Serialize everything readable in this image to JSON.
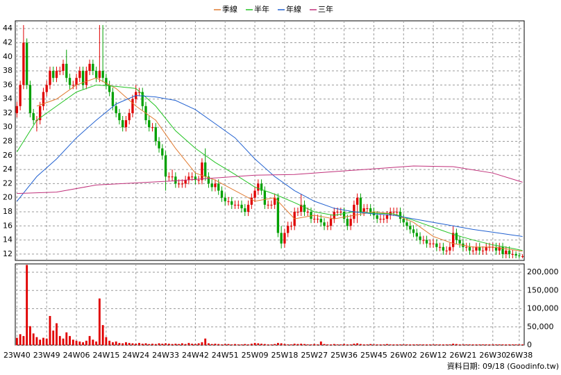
{
  "chart_data": [
    {
      "type": "candlestick",
      "categories": [
        "23W40",
        null,
        null,
        null,
        null,
        null,
        null,
        null,
        null,
        "23W49",
        null,
        null,
        null,
        null,
        null,
        null,
        null,
        null,
        "24W06",
        null,
        null,
        null,
        null,
        null,
        null,
        null,
        null,
        "24W15",
        null,
        null,
        null,
        null,
        null,
        null,
        null,
        null,
        "24W24",
        null,
        null,
        null,
        null,
        null,
        null,
        null,
        null,
        "24W33",
        null,
        null,
        null,
        null,
        null,
        null,
        null,
        null,
        "24W42",
        null,
        null,
        null,
        null,
        null,
        null,
        null,
        null,
        "24W51",
        null,
        null,
        null,
        null,
        null,
        null,
        null,
        null,
        "25W09",
        null,
        null,
        null,
        null,
        null,
        null,
        null,
        null,
        "25W18",
        null,
        null,
        null,
        null,
        null,
        null,
        null,
        null,
        "25W27",
        null,
        null,
        null,
        null,
        null,
        null,
        null,
        null,
        "25W36",
        null,
        null,
        null,
        null,
        null,
        null,
        null,
        null,
        "25W45",
        null,
        null,
        null,
        null,
        null,
        null,
        null,
        null,
        "26W02",
        null,
        null,
        null,
        null,
        null,
        null,
        null,
        null,
        "26W12",
        null,
        null,
        null,
        null,
        null,
        null,
        null,
        null,
        "26W21",
        null,
        null,
        null,
        null,
        null,
        null,
        null,
        null,
        "26W30",
        null,
        null,
        null,
        null,
        null,
        null,
        null,
        "26W38",
        null
      ],
      "open": [
        32,
        33,
        36,
        42,
        36,
        32,
        31,
        31,
        33,
        35,
        36,
        38,
        37,
        38,
        38,
        39,
        37,
        36,
        36,
        37,
        38,
        36,
        38,
        39,
        38,
        37,
        38,
        37,
        36,
        35,
        33,
        32,
        31,
        30,
        31,
        32,
        34,
        35,
        35,
        33,
        31,
        30,
        30,
        28,
        27,
        26,
        23,
        23,
        23,
        22,
        22,
        22,
        22.5,
        23,
        23,
        22.5,
        22.5,
        25,
        23,
        22,
        21.5,
        22,
        21,
        20,
        19.5,
        19.5,
        19,
        19,
        19,
        18.5,
        18,
        19,
        20,
        21,
        22,
        21,
        19,
        19,
        19,
        20,
        15,
        13.5,
        15,
        16,
        16,
        18,
        18,
        19,
        18,
        18,
        17,
        17,
        17,
        16.5,
        16,
        16,
        17,
        18,
        18,
        18,
        17,
        16,
        17,
        19,
        20,
        18,
        18.5,
        18.5,
        18,
        17.5,
        17,
        17,
        17,
        17.5,
        18,
        18,
        18,
        17,
        16.5,
        16,
        15.5,
        15,
        14.5,
        14,
        14,
        13.5,
        13.5,
        13.5,
        13,
        13,
        12.5,
        12.5,
        13,
        15,
        14,
        13.5,
        13,
        13,
        12.5,
        12.5,
        13,
        12.5,
        12.5,
        13,
        13,
        13,
        12.5,
        13,
        12,
        12.5,
        12,
        12,
        11.8,
        11.7
      ],
      "high": [
        33.6,
        36.6,
        44.5,
        42.6,
        36.6,
        32.6,
        31.6,
        33.6,
        35.6,
        36.6,
        38.6,
        38.6,
        38.6,
        38.6,
        39.6,
        41,
        37.6,
        36.6,
        37.6,
        38.6,
        38.6,
        38.6,
        39.6,
        39.6,
        38.6,
        44.5,
        44.5,
        37.6,
        36.6,
        35.6,
        33.6,
        32.6,
        31.6,
        31.6,
        32.6,
        34.6,
        36,
        35.6,
        35.6,
        33.6,
        31.6,
        30.6,
        30.6,
        28.6,
        27.6,
        26.6,
        23.6,
        24,
        23.6,
        22.6,
        22.6,
        23.1,
        23.6,
        23.6,
        23.6,
        23.1,
        25.6,
        27,
        23.6,
        22.6,
        22.6,
        22.6,
        21.6,
        20.6,
        20.1,
        20.1,
        19.6,
        19.6,
        19.6,
        19.1,
        19.6,
        20.6,
        21.6,
        22.6,
        22.6,
        21.6,
        19.6,
        19.6,
        20.6,
        20.6,
        16,
        15.6,
        16.6,
        16.6,
        18.6,
        18.6,
        20.5,
        19.6,
        18.6,
        18.6,
        17.6,
        17.6,
        17.6,
        17.1,
        16.6,
        17.6,
        18.6,
        18.6,
        18.6,
        18.6,
        17.6,
        17.6,
        19.6,
        20.6,
        20.6,
        19.1,
        19.1,
        19.1,
        18.6,
        18.1,
        17.6,
        17.6,
        18.1,
        18.6,
        18.6,
        18.6,
        18.6,
        17.6,
        17.1,
        16.6,
        16.1,
        15.6,
        15.1,
        14.6,
        14.6,
        14.1,
        14.1,
        14.1,
        13.6,
        13.6,
        13.1,
        13.6,
        16,
        15.6,
        14.6,
        14.1,
        13.6,
        13.6,
        13.1,
        13.6,
        13.6,
        13.1,
        13.6,
        13.6,
        13.6,
        13.6,
        13.6,
        13.6,
        13.1,
        13.1,
        12.6,
        12.4,
        12.2,
        12
      ],
      "low": [
        31.4,
        32.4,
        35.4,
        35.4,
        31.4,
        30.4,
        29.4,
        30.4,
        32.4,
        34.4,
        35.4,
        36.4,
        36.4,
        37.4,
        37.4,
        36.4,
        35.4,
        35.4,
        35.4,
        36.4,
        35.4,
        35.4,
        37.4,
        37.4,
        36.4,
        36.4,
        36.4,
        35.4,
        34.4,
        32.4,
        31.4,
        30.4,
        29.4,
        29.4,
        30.4,
        31.4,
        33.4,
        34.4,
        32.4,
        30.4,
        29.4,
        29.4,
        27.4,
        26.4,
        25.4,
        21,
        22.4,
        22.4,
        21.4,
        21.4,
        21.4,
        21.4,
        21.9,
        22.4,
        21.9,
        21.9,
        21.9,
        22.4,
        21.4,
        20.9,
        20.9,
        20.4,
        19.4,
        18.9,
        18.9,
        18.4,
        18.4,
        18.4,
        17.9,
        17.4,
        17.4,
        18.4,
        19.4,
        20.4,
        20.4,
        18.4,
        18.4,
        18.4,
        18.4,
        14.4,
        12.8,
        12.9,
        14.4,
        15.4,
        15.4,
        17.4,
        17.4,
        17.4,
        17.4,
        16.4,
        16.4,
        16.4,
        15.9,
        15.4,
        15.4,
        15.4,
        16.4,
        17.4,
        17.4,
        16.4,
        15.4,
        15.4,
        16.4,
        16.4,
        17.4,
        17.4,
        17.9,
        17.4,
        16.9,
        16.4,
        16.4,
        16.4,
        16.4,
        16.9,
        17.4,
        17.4,
        16.4,
        15.9,
        15.4,
        14.9,
        14.4,
        13.9,
        13.4,
        13.4,
        12.9,
        12.9,
        12.9,
        12.4,
        12.4,
        11.9,
        11.9,
        11.9,
        12.4,
        13.4,
        12.9,
        12.4,
        12.4,
        11.9,
        11.9,
        11.9,
        11.9,
        11.9,
        11.9,
        12.4,
        12.4,
        11.9,
        11.9,
        11.4,
        11.4,
        11.4,
        11.4,
        11.4,
        11.4,
        11.4
      ],
      "close": [
        33,
        36,
        42,
        36,
        32,
        31,
        31,
        33,
        35,
        36,
        38,
        37,
        38,
        38,
        39,
        37,
        36,
        36,
        37,
        38,
        36,
        38,
        39,
        38,
        37,
        38,
        37,
        36,
        35,
        33,
        32,
        31,
        30,
        31,
        32,
        34,
        35,
        35,
        33,
        31,
        30,
        30,
        28,
        27,
        26,
        23,
        23,
        23,
        22,
        22,
        22,
        22.5,
        23,
        23,
        22.5,
        22.5,
        25,
        23,
        22,
        21.5,
        22,
        21,
        20,
        19.5,
        19.5,
        19,
        19,
        19,
        18.5,
        18,
        19,
        20,
        21,
        22,
        21,
        19,
        19,
        19,
        20,
        15,
        13.5,
        15,
        16,
        16,
        18,
        18,
        19,
        18,
        18,
        17,
        17,
        17,
        16.5,
        16,
        16,
        17,
        18,
        18,
        18,
        17,
        16,
        17,
        19,
        20,
        18,
        18.5,
        18.5,
        18,
        17.5,
        17,
        17,
        17,
        17.5,
        18,
        18,
        18,
        17,
        16.5,
        16,
        15.5,
        15,
        14.5,
        14,
        14,
        13.5,
        13.5,
        13.5,
        13,
        13,
        12.5,
        12.5,
        13,
        15,
        14,
        13.5,
        13,
        13,
        12.5,
        12.5,
        13,
        12.5,
        12.5,
        13,
        13,
        13,
        12.5,
        13,
        12,
        12.5,
        12,
        12,
        11.8,
        11.7,
        11.7
      ],
      "up_color": "#e00000",
      "down_color": "#00a000",
      "ylim": [
        11.1,
        45.1
      ],
      "yticks": [
        12,
        14,
        16,
        18,
        20,
        22,
        24,
        26,
        28,
        30,
        32,
        34,
        36,
        38,
        40,
        42,
        44
      ],
      "grid": true,
      "legend": "top",
      "series": [
        {
          "name": "季線",
          "color": "#e07a30",
          "x": [
            6,
            12,
            18,
            24,
            30,
            36,
            42,
            48,
            54,
            60,
            66,
            72,
            78,
            84,
            90,
            96,
            102,
            108,
            114,
            120,
            126,
            132,
            138,
            144,
            150,
            153
          ],
          "values": [
            33,
            34,
            36,
            37,
            35.5,
            33,
            31,
            27,
            23.5,
            22.5,
            21,
            19.5,
            20,
            17,
            17.5,
            17,
            17.5,
            18,
            17.7,
            16.5,
            14.5,
            13.5,
            13,
            13,
            12.6,
            12.4
          ]
        },
        {
          "name": "半年",
          "color": "#22c322",
          "x": [
            0,
            6,
            12,
            18,
            24,
            30,
            36,
            42,
            48,
            54,
            60,
            66,
            72,
            78,
            84,
            90,
            96,
            102,
            108,
            114,
            120,
            126,
            132,
            138,
            144,
            150,
            153
          ],
          "values": [
            26.5,
            31,
            33,
            35,
            36,
            35.8,
            35.5,
            33,
            29.5,
            27,
            25,
            23.3,
            21.5,
            20.5,
            19.3,
            18,
            17.5,
            18,
            17.8,
            17.7,
            16.8,
            15.8,
            14.8,
            14,
            13.3,
            12.8,
            12.5
          ]
        },
        {
          "name": "年線",
          "color": "#2060d0",
          "x": [
            0,
            6,
            12,
            18,
            24,
            30,
            36,
            42,
            48,
            54,
            60,
            66,
            72,
            78,
            84,
            90,
            96,
            102,
            108,
            114,
            120,
            126,
            132,
            138,
            144,
            150,
            153
          ],
          "values": [
            19.5,
            23,
            25.5,
            28.5,
            31,
            33.3,
            34.5,
            34.3,
            33.8,
            32.5,
            30.5,
            28.5,
            25.5,
            23,
            21,
            19.5,
            18.5,
            18,
            17.7,
            17.5,
            17,
            16.5,
            16,
            15.5,
            15.1,
            14.7,
            14.5
          ]
        },
        {
          "name": "三年",
          "color": "#c0307a",
          "x": [
            0,
            12,
            24,
            36,
            48,
            60,
            72,
            84,
            96,
            108,
            120,
            132,
            144,
            153
          ],
          "values": [
            20.6,
            20.8,
            21.8,
            22.1,
            22.4,
            22.8,
            23.2,
            23.3,
            23.7,
            24.1,
            24.5,
            24.4,
            23.5,
            22.2
          ]
        }
      ]
    },
    {
      "type": "bar",
      "color": "#e00000",
      "grid": true,
      "values": [
        20000,
        30000,
        25000,
        220000,
        52000,
        32000,
        22000,
        15000,
        20000,
        18000,
        80000,
        40000,
        60000,
        25000,
        18000,
        35000,
        25000,
        15000,
        12000,
        10000,
        8000,
        12000,
        25000,
        15000,
        10000,
        128000,
        55000,
        22000,
        12000,
        8000,
        10000,
        6000,
        5000,
        8000,
        6000,
        5000,
        4000,
        6000,
        4000,
        5000,
        3000,
        4000,
        3000,
        5000,
        4000,
        5000,
        4000,
        3000,
        4000,
        3000,
        5000,
        3000,
        6000,
        4000,
        3000,
        5000,
        8000,
        18000,
        5000,
        3000,
        4000,
        3000,
        2000,
        3000,
        3000,
        2000,
        3000,
        2000,
        2000,
        3000,
        2000,
        4000,
        6000,
        5000,
        4000,
        3000,
        2000,
        2000,
        3000,
        6000,
        5000,
        3000,
        2000,
        2000,
        4000,
        3000,
        4000,
        3000,
        2000,
        2000,
        3000,
        2000,
        10000,
        3000,
        2000,
        2000,
        3000,
        2000,
        2000,
        3000,
        2000,
        2000,
        4000,
        5000,
        3000,
        2000,
        2000,
        3000,
        2000,
        2000,
        2000,
        2000,
        3000,
        2000,
        2000,
        2000,
        2000,
        2000,
        2000,
        2000,
        2000,
        2000,
        2000,
        2000,
        2000,
        2000,
        2000,
        2000,
        2000,
        2000,
        2000,
        2000,
        4000,
        3000,
        2000,
        2000,
        2000,
        2000,
        2000,
        2000,
        2000,
        2000,
        2000,
        2000,
        2000,
        2000,
        2000,
        2000,
        2000,
        2000,
        2000,
        2000,
        2000,
        2000
      ],
      "ylim": [
        0,
        222900
      ],
      "yticks": [
        0,
        {
          "value": 50000,
          "label": "50,000"
        },
        {
          "value": 100000,
          "label": "100,000"
        },
        {
          "value": 150000,
          "label": "150,000"
        },
        {
          "value": 200000,
          "label": "200,000"
        }
      ]
    }
  ],
  "footer": "資料日期: 09/18  (Goodinfo.tw)"
}
